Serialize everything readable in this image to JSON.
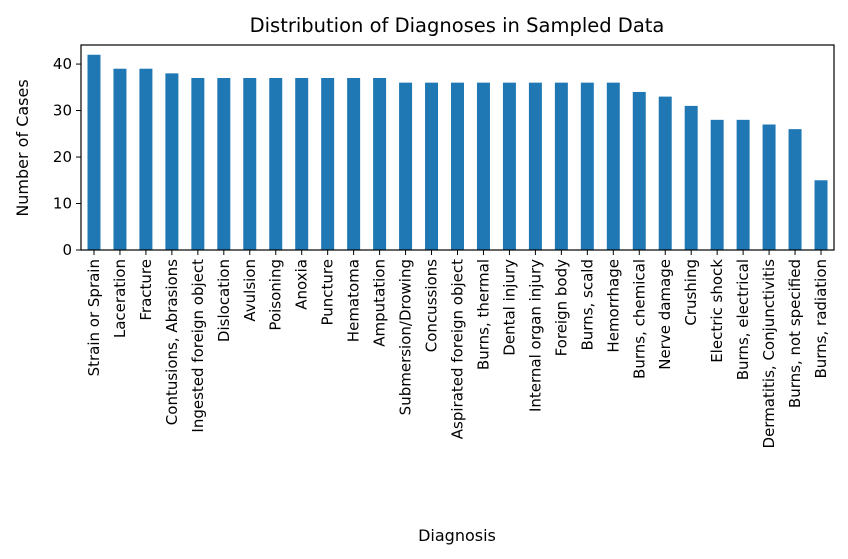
{
  "chart_data": {
    "type": "bar",
    "title": "Distribution of Diagnoses in Sampled Data",
    "xlabel": "Diagnosis",
    "ylabel": "Number of Cases",
    "ylim": [
      0,
      44.1
    ],
    "yticks": [
      0,
      10,
      20,
      30,
      40
    ],
    "bar_color": "#1f77b4",
    "grid": false,
    "categories": [
      "Strain or Sprain",
      "Laceration",
      "Fracture",
      "Contusions, Abrasions",
      "Ingested foreign object",
      "Dislocation",
      "Avulsion",
      "Poisoning",
      "Anoxia",
      "Puncture",
      "Hematoma",
      "Amputation",
      "Submersion/Drowing",
      "Concussions",
      "Aspirated foreign object",
      "Burns, thermal",
      "Dental injury",
      "Internal organ injury",
      "Foreign body",
      "Burns, scald",
      "Hemorrhage",
      "Burns, chemical",
      "Nerve damage",
      "Crushing",
      "Electric shock",
      "Burns, electrical",
      "Dermatitis, Conjunctivitis",
      "Burns, not specified",
      "Burns, radiation"
    ],
    "values": [
      42,
      39,
      39,
      38,
      37,
      37,
      37,
      37,
      37,
      37,
      37,
      37,
      36,
      36,
      36,
      36,
      36,
      36,
      36,
      36,
      36,
      34,
      33,
      31,
      28,
      28,
      27,
      26,
      15
    ]
  }
}
